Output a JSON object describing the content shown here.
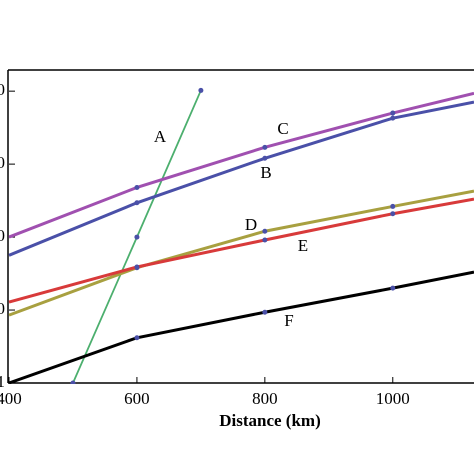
{
  "chart_data": {
    "type": "line",
    "xlabel": "Distance (km)",
    "xlim": [
      400,
      1127
    ],
    "xticks": [
      400,
      600,
      800,
      1000
    ],
    "ylim": [
      0,
      4.29
    ],
    "yticks": [
      {
        "value": 0,
        "label": "1"
      },
      {
        "value": 1,
        "label": "0"
      },
      {
        "value": 2,
        "label": "0"
      },
      {
        "value": 3,
        "label": "0"
      },
      {
        "value": 4,
        "label": "0"
      }
    ],
    "series": [
      {
        "name": "A",
        "color": "#4caf6e",
        "x": [
          500,
          600,
          700
        ],
        "values": [
          0,
          2.0,
          4.01
        ]
      },
      {
        "name": "C",
        "color": "#a050b0",
        "x": [
          400,
          600,
          800,
          1000,
          1127
        ],
        "values": [
          2.0,
          2.68,
          3.23,
          3.7,
          3.97
        ]
      },
      {
        "name": "B",
        "color": "#4a50a8",
        "x": [
          400,
          600,
          800,
          1000,
          1127
        ],
        "values": [
          1.75,
          2.47,
          3.08,
          3.63,
          3.85
        ]
      },
      {
        "name": "D",
        "color": "#a8a040",
        "x": [
          400,
          600,
          800,
          1000,
          1127
        ],
        "values": [
          0.93,
          1.58,
          2.08,
          2.42,
          2.63
        ]
      },
      {
        "name": "E",
        "color": "#d83a3a",
        "x": [
          400,
          600,
          800,
          1000,
          1127
        ],
        "values": [
          1.11,
          1.59,
          1.96,
          2.32,
          2.52
        ]
      },
      {
        "name": "F",
        "color": "#000000",
        "x": [
          400,
          600,
          800,
          1000,
          1127
        ],
        "values": [
          0,
          0.62,
          0.97,
          1.3,
          1.52
        ]
      }
    ]
  }
}
